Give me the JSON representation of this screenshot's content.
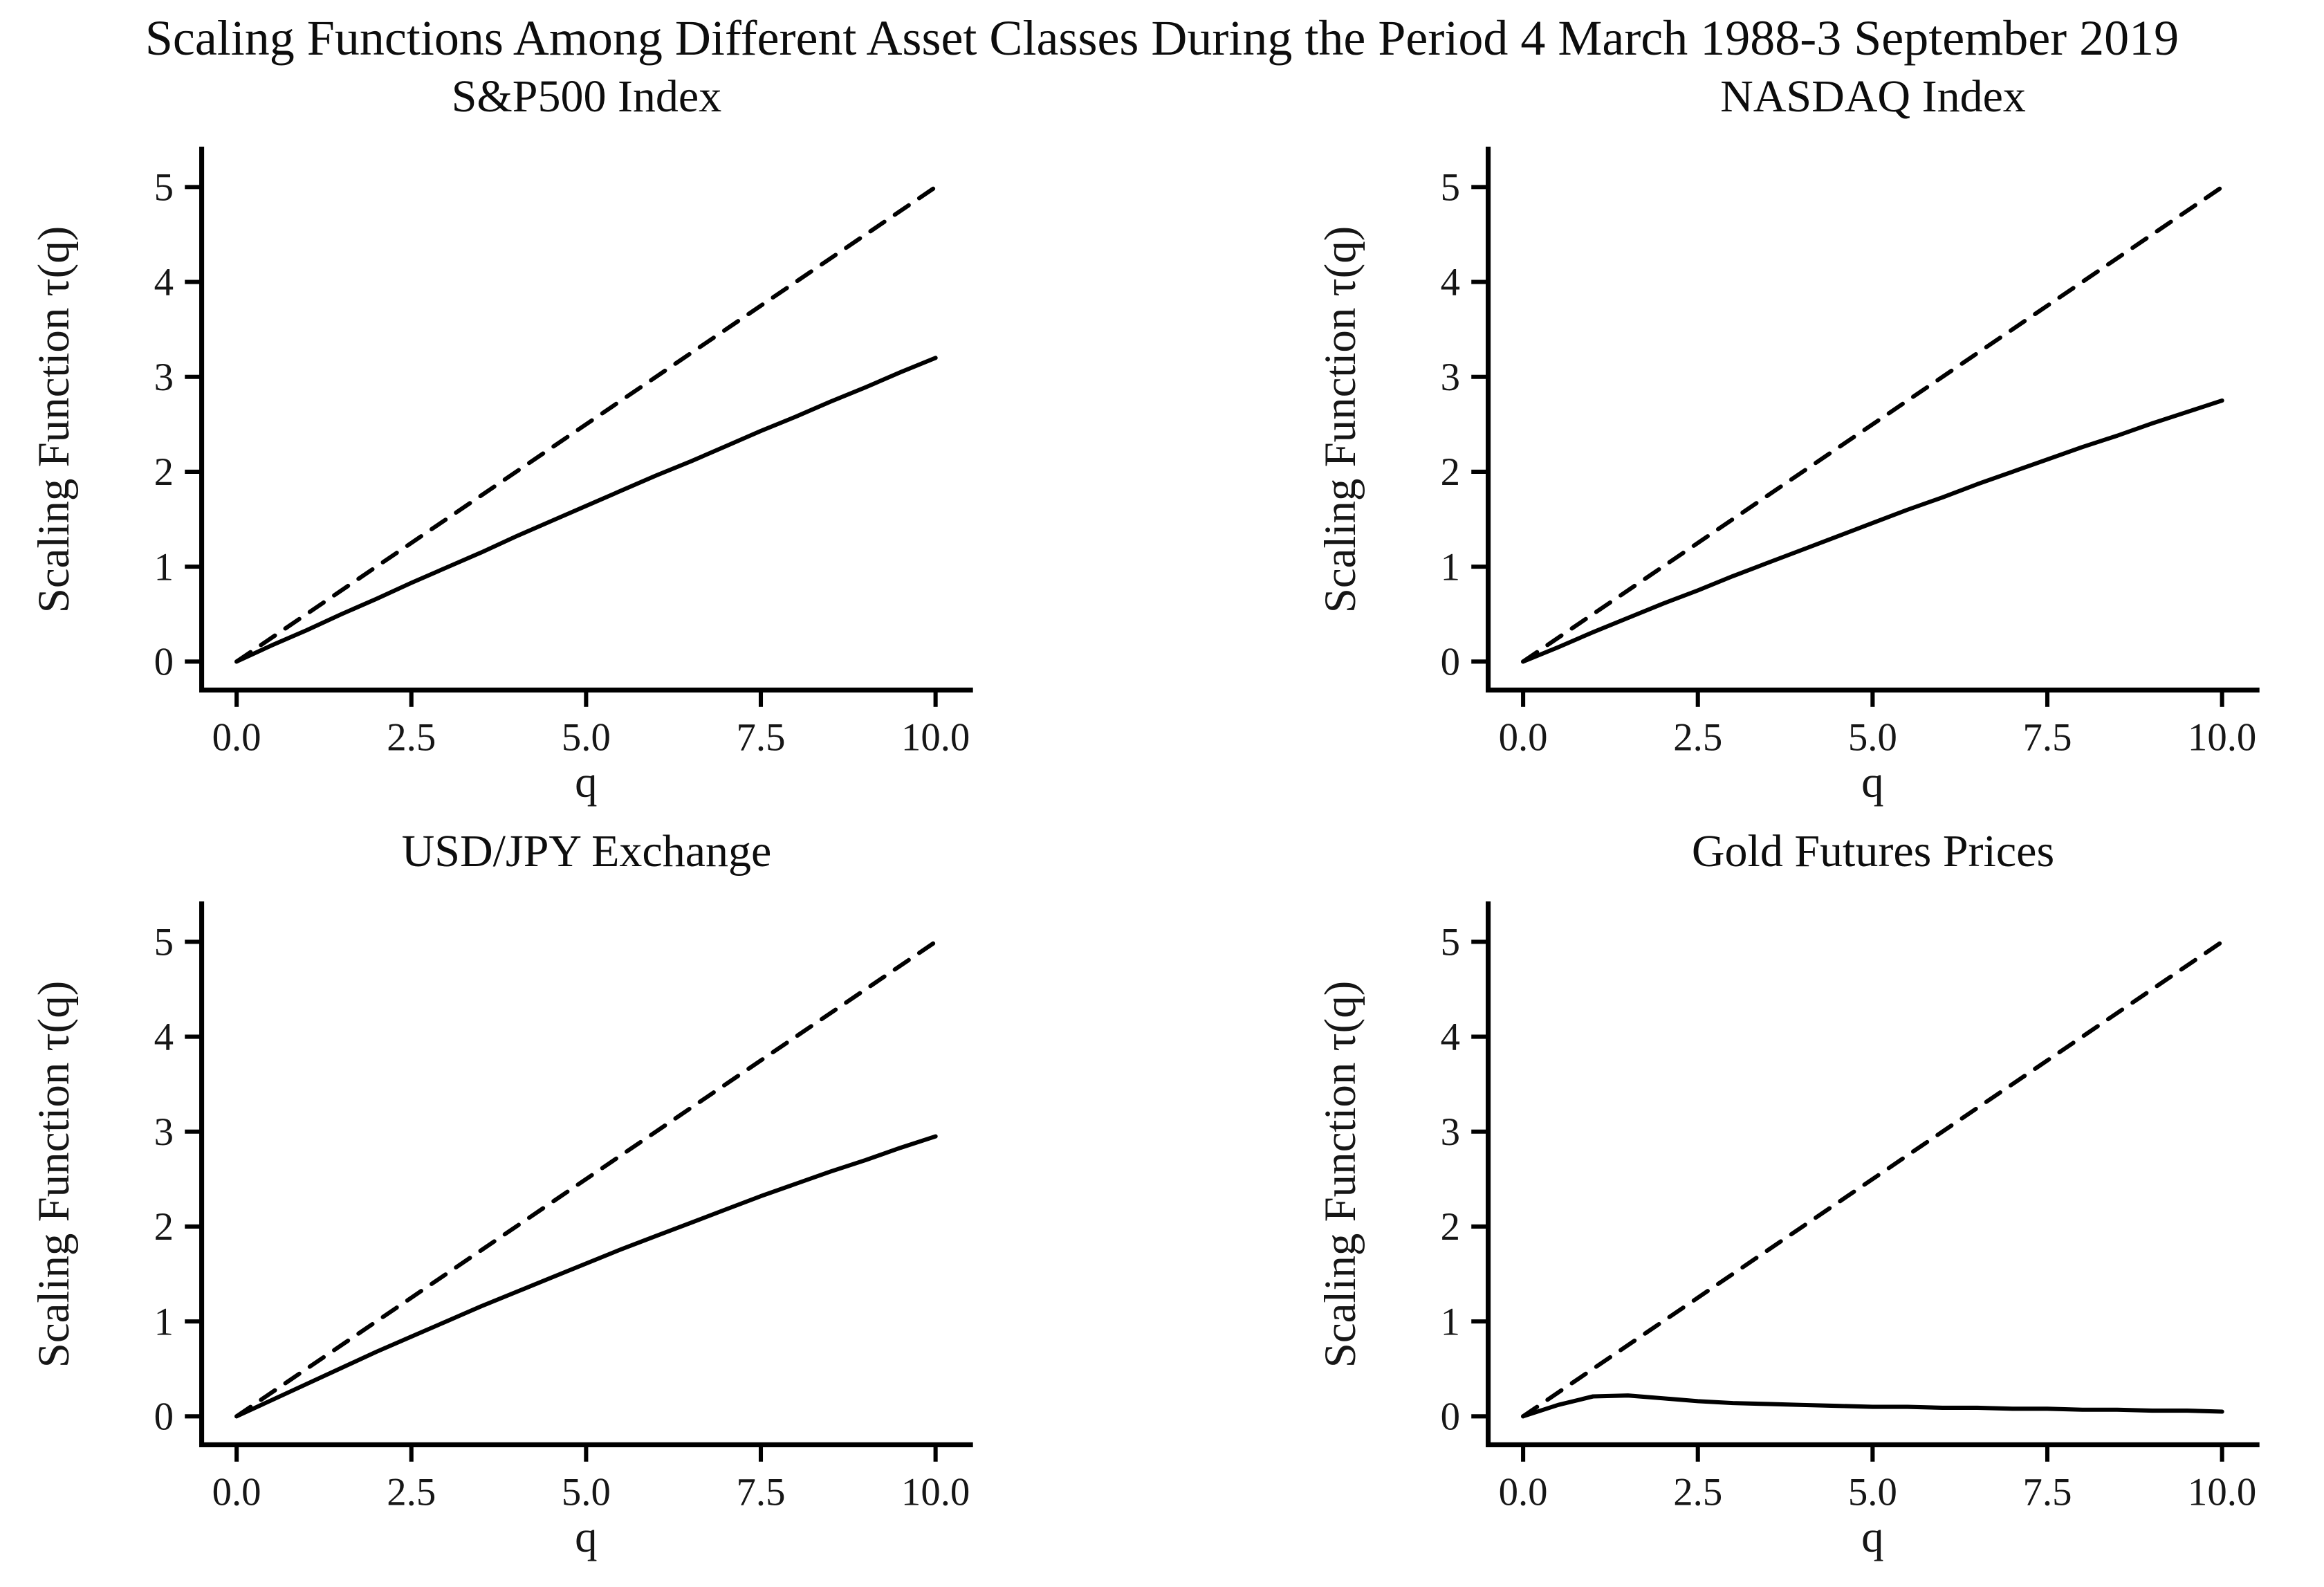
{
  "page_title": "Scaling Functions Among Different Asset Classes During the Period 4 March 1988-3 September 2019",
  "chart_data": [
    {
      "type": "line",
      "title": "S&P500 Index",
      "xlabel": "q",
      "ylabel": "Scaling Function τ(q)",
      "xlim": [
        0,
        10
      ],
      "ylim": [
        0,
        5
      ],
      "grid": false,
      "legend_position": "none",
      "x_ticks": [
        0,
        2.5,
        5,
        7.5,
        10
      ],
      "x_tick_labels": [
        "0.0",
        "2.5",
        "5.0",
        "7.5",
        "10.0"
      ],
      "y_ticks": [
        0,
        1,
        2,
        3,
        4,
        5
      ],
      "y_tick_labels": [
        "0",
        "1",
        "2",
        "3",
        "4",
        "5"
      ],
      "series": [
        {
          "name": "scaling-function-sp500",
          "style": "solid",
          "color": "#000000",
          "x": [
            0,
            0.5,
            1,
            1.5,
            2,
            2.5,
            3,
            3.5,
            4,
            4.5,
            5,
            5.5,
            6,
            6.5,
            7,
            7.5,
            8,
            8.5,
            9,
            9.5,
            10
          ],
          "y": [
            0,
            0.17,
            0.33,
            0.5,
            0.66,
            0.83,
            0.99,
            1.15,
            1.32,
            1.48,
            1.64,
            1.8,
            1.96,
            2.11,
            2.27,
            2.43,
            2.58,
            2.74,
            2.89,
            3.05,
            3.2
          ]
        },
        {
          "name": "linear-reference",
          "style": "dashed",
          "color": "#000000",
          "x": [
            0,
            10
          ],
          "y": [
            0,
            5
          ]
        }
      ]
    },
    {
      "type": "line",
      "title": "NASDAQ Index",
      "xlabel": "q",
      "ylabel": "Scaling Function τ(q)",
      "xlim": [
        0,
        10
      ],
      "ylim": [
        0,
        5
      ],
      "grid": false,
      "legend_position": "none",
      "x_ticks": [
        0,
        2.5,
        5,
        7.5,
        10
      ],
      "x_tick_labels": [
        "0.0",
        "2.5",
        "5.0",
        "7.5",
        "10.0"
      ],
      "y_ticks": [
        0,
        1,
        2,
        3,
        4,
        5
      ],
      "y_tick_labels": [
        "0",
        "1",
        "2",
        "3",
        "4",
        "5"
      ],
      "series": [
        {
          "name": "scaling-function-nasdaq",
          "style": "solid",
          "color": "#000000",
          "x": [
            0,
            0.5,
            1,
            1.5,
            2,
            2.5,
            3,
            3.5,
            4,
            4.5,
            5,
            5.5,
            6,
            6.5,
            7,
            7.5,
            8,
            8.5,
            9,
            9.5,
            10
          ],
          "y": [
            0,
            0.15,
            0.31,
            0.46,
            0.61,
            0.75,
            0.9,
            1.04,
            1.18,
            1.32,
            1.46,
            1.6,
            1.73,
            1.87,
            2.0,
            2.13,
            2.26,
            2.38,
            2.51,
            2.63,
            2.75
          ]
        },
        {
          "name": "linear-reference",
          "style": "dashed",
          "color": "#000000",
          "x": [
            0,
            10
          ],
          "y": [
            0,
            5
          ]
        }
      ]
    },
    {
      "type": "line",
      "title": "USD/JPY Exchange",
      "xlabel": "q",
      "ylabel": "Scaling Function τ(q)",
      "xlim": [
        0,
        10
      ],
      "ylim": [
        0,
        5
      ],
      "grid": false,
      "legend_position": "none",
      "x_ticks": [
        0,
        2.5,
        5,
        7.5,
        10
      ],
      "x_tick_labels": [
        "0.0",
        "2.5",
        "5.0",
        "7.5",
        "10.0"
      ],
      "y_ticks": [
        0,
        1,
        2,
        3,
        4,
        5
      ],
      "y_tick_labels": [
        "0",
        "1",
        "2",
        "3",
        "4",
        "5"
      ],
      "series": [
        {
          "name": "scaling-function-usdjpy",
          "style": "solid",
          "color": "#000000",
          "x": [
            0,
            0.5,
            1,
            1.5,
            2,
            2.5,
            3,
            3.5,
            4,
            4.5,
            5,
            5.5,
            6,
            6.5,
            7,
            7.5,
            8,
            8.5,
            9,
            9.5,
            10
          ],
          "y": [
            0,
            0.17,
            0.34,
            0.51,
            0.68,
            0.84,
            1.0,
            1.16,
            1.31,
            1.46,
            1.61,
            1.76,
            1.9,
            2.04,
            2.18,
            2.32,
            2.45,
            2.58,
            2.7,
            2.83,
            2.95
          ]
        },
        {
          "name": "linear-reference",
          "style": "dashed",
          "color": "#000000",
          "x": [
            0,
            10
          ],
          "y": [
            0,
            5
          ]
        }
      ]
    },
    {
      "type": "line",
      "title": "Gold Futures Prices",
      "xlabel": "q",
      "ylabel": "Scaling Function τ(q)",
      "xlim": [
        0,
        10
      ],
      "ylim": [
        0,
        5
      ],
      "grid": false,
      "legend_position": "none",
      "x_ticks": [
        0,
        2.5,
        5,
        7.5,
        10
      ],
      "x_tick_labels": [
        "0.0",
        "2.5",
        "5.0",
        "7.5",
        "10.0"
      ],
      "y_ticks": [
        0,
        1,
        2,
        3,
        4,
        5
      ],
      "y_tick_labels": [
        "0",
        "1",
        "2",
        "3",
        "4",
        "5"
      ],
      "series": [
        {
          "name": "scaling-function-gold",
          "style": "solid",
          "color": "#000000",
          "x": [
            0,
            0.5,
            1,
            1.5,
            2,
            2.5,
            3,
            3.5,
            4,
            4.5,
            5,
            5.5,
            6,
            6.5,
            7,
            7.5,
            8,
            8.5,
            9,
            9.5,
            10
          ],
          "y": [
            0,
            0.12,
            0.21,
            0.22,
            0.19,
            0.16,
            0.14,
            0.13,
            0.12,
            0.11,
            0.1,
            0.1,
            0.09,
            0.09,
            0.08,
            0.08,
            0.07,
            0.07,
            0.06,
            0.06,
            0.05
          ]
        },
        {
          "name": "linear-reference",
          "style": "dashed",
          "color": "#000000",
          "x": [
            0,
            10
          ],
          "y": [
            0,
            5
          ]
        }
      ]
    }
  ]
}
